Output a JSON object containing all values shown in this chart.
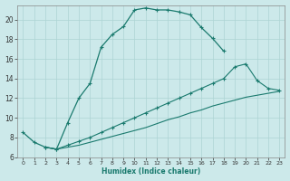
{
  "xlabel": "Humidex (Indice chaleur)",
  "bg_color": "#cce9ea",
  "line_color": "#1a7a6e",
  "grid_color": "#add4d4",
  "xlim": [
    -0.5,
    23.5
  ],
  "ylim": [
    6,
    21.5
  ],
  "xticks": [
    0,
    1,
    2,
    3,
    4,
    5,
    6,
    7,
    8,
    9,
    10,
    11,
    12,
    13,
    14,
    15,
    16,
    17,
    18,
    19,
    20,
    21,
    22,
    23
  ],
  "yticks": [
    6,
    8,
    10,
    12,
    14,
    16,
    18,
    20
  ],
  "line1_x": [
    0,
    1,
    2,
    3,
    4,
    5,
    6,
    7,
    8,
    9,
    10,
    11,
    12,
    13,
    14,
    15,
    16,
    17,
    18
  ],
  "line1_y": [
    8.5,
    7.5,
    7.0,
    6.8,
    9.5,
    12.0,
    13.5,
    17.2,
    18.5,
    19.3,
    21.0,
    21.2,
    21.0,
    21.0,
    20.8,
    20.5,
    19.2,
    18.1,
    16.8
  ],
  "line2_x": [
    2,
    3,
    4,
    5,
    6,
    7,
    8,
    9,
    10,
    11,
    12,
    13,
    14,
    15,
    16,
    17,
    18,
    19,
    20,
    21,
    22,
    23
  ],
  "line2_y": [
    7.0,
    6.8,
    7.2,
    7.6,
    8.0,
    8.5,
    9.0,
    9.5,
    10.0,
    10.5,
    11.0,
    11.5,
    12.0,
    12.5,
    13.0,
    13.5,
    14.0,
    15.2,
    15.5,
    13.8,
    13.0,
    12.8
  ],
  "line3_x": [
    2,
    3,
    4,
    5,
    6,
    7,
    8,
    9,
    10,
    11,
    12,
    13,
    14,
    15,
    16,
    17,
    18,
    19,
    20,
    21,
    22,
    23
  ],
  "line3_y": [
    7.0,
    6.8,
    7.0,
    7.2,
    7.5,
    7.8,
    8.1,
    8.4,
    8.7,
    9.0,
    9.4,
    9.8,
    10.1,
    10.5,
    10.8,
    11.2,
    11.5,
    11.8,
    12.1,
    12.3,
    12.5,
    12.7
  ]
}
